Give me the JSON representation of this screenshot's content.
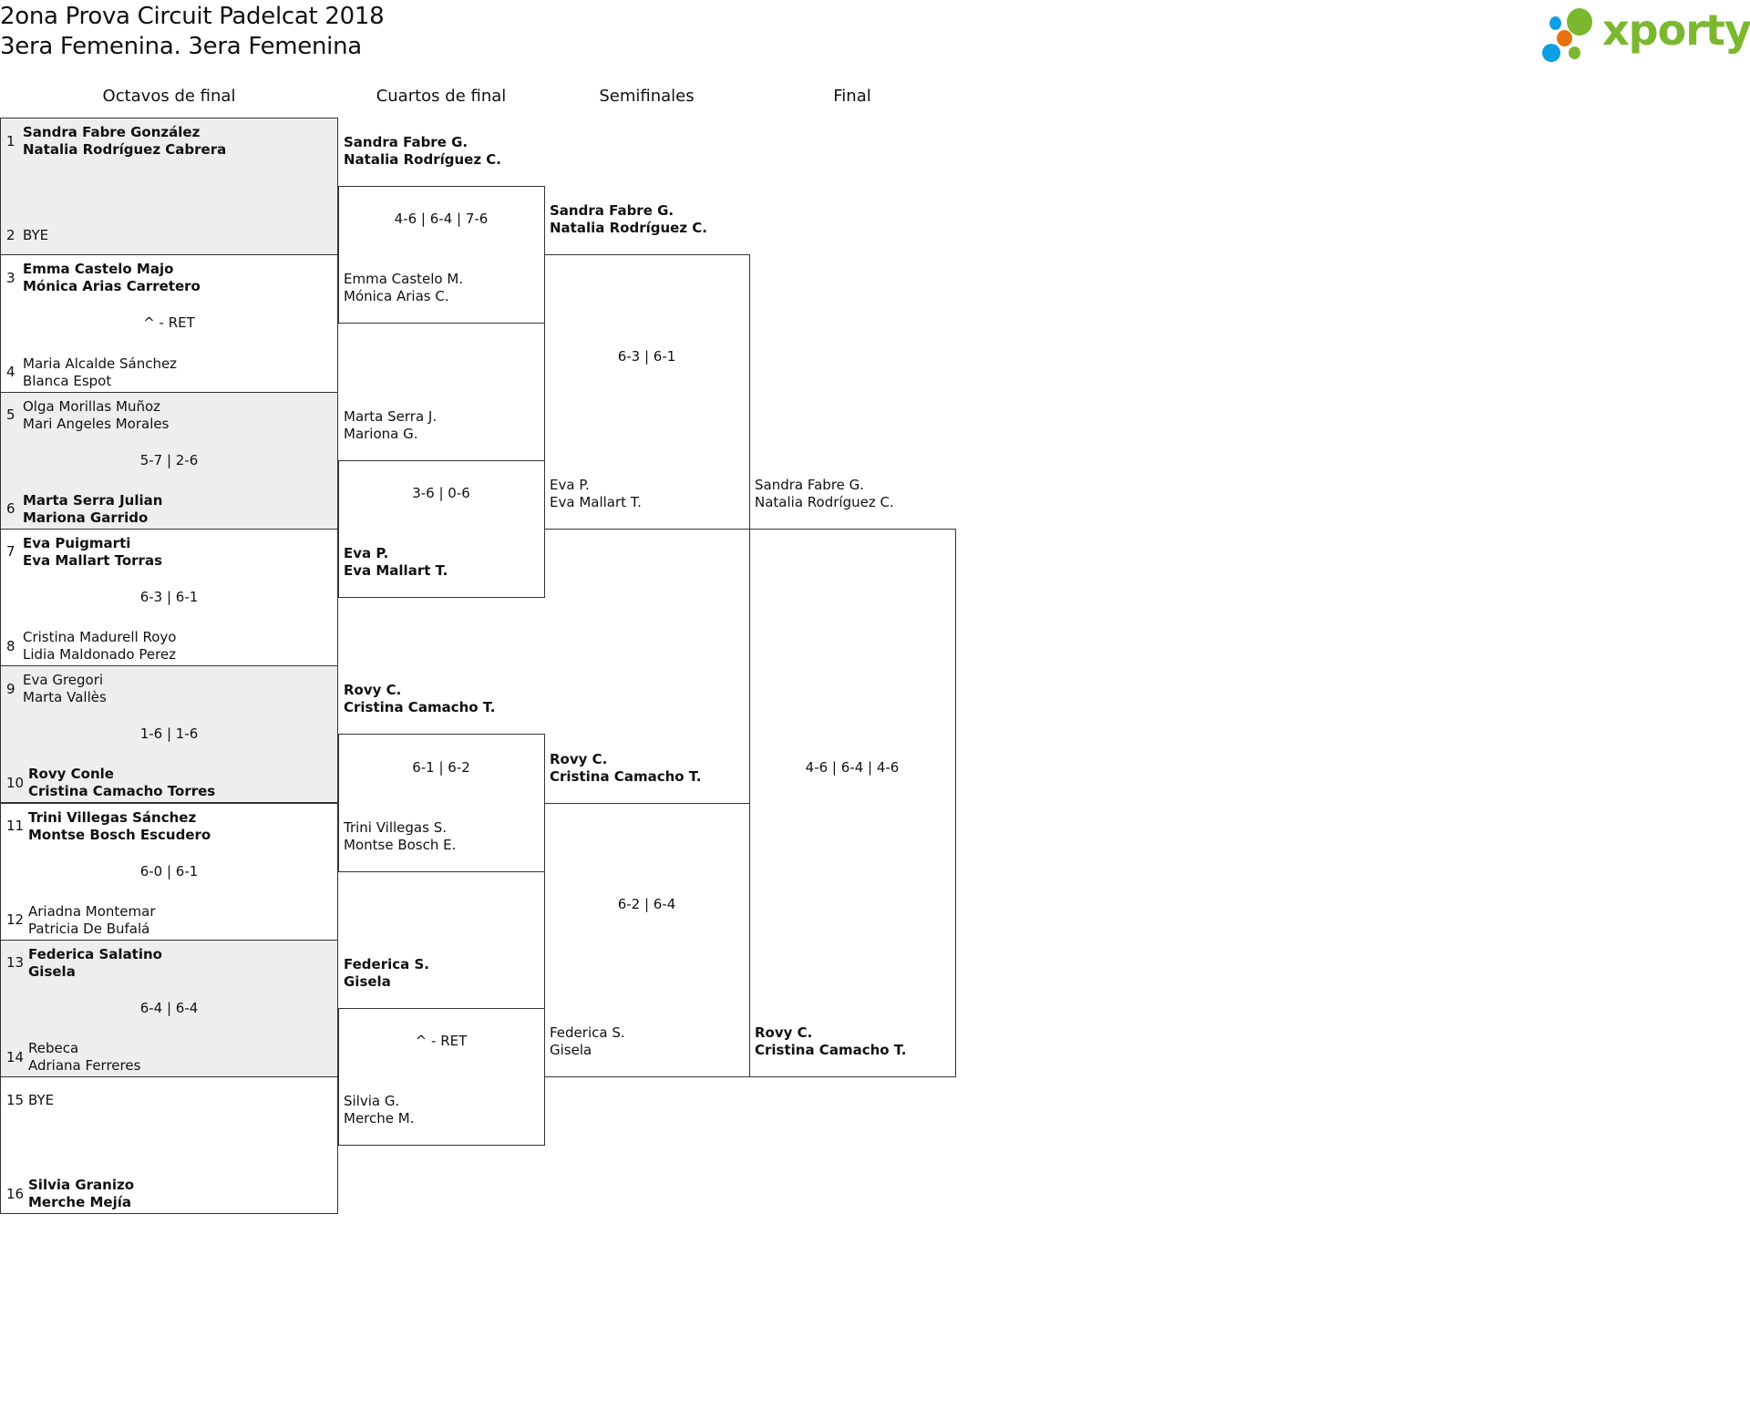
{
  "header": {
    "title": "2ona Prova Circuit Padelcat 2018",
    "subtitle": "3era Femenina. 3era Femenina",
    "logo_text": "xporty",
    "logo_colors": {
      "green": "#7cb82f",
      "blue": "#0e9ee3",
      "orange": "#e8710f"
    }
  },
  "rounds": [
    "Octavos de final",
    "Cuartos de final",
    "Semifinales",
    "Final"
  ],
  "round_of_16": [
    {
      "score": "",
      "teams": [
        {
          "seed": "1",
          "names": [
            "Sandra Fabre González",
            "Natalia Rodríguez Cabrera"
          ],
          "winner": true
        },
        {
          "seed": "2",
          "names": [
            "BYE"
          ],
          "winner": false
        }
      ]
    },
    {
      "score": "^ - RET",
      "teams": [
        {
          "seed": "3",
          "names": [
            "Emma Castelo Majo",
            "Mónica Arias Carretero"
          ],
          "winner": true
        },
        {
          "seed": "4",
          "names": [
            "Maria Alcalde Sánchez",
            "Blanca Espot"
          ],
          "winner": false
        }
      ]
    },
    {
      "score": "5-7 | 2-6",
      "teams": [
        {
          "seed": "5",
          "names": [
            "Olga Morillas Muñoz",
            "Mari Angeles Morales"
          ],
          "winner": false
        },
        {
          "seed": "6",
          "names": [
            "Marta Serra Julian",
            "Mariona Garrido"
          ],
          "winner": true
        }
      ]
    },
    {
      "score": "6-3 | 6-1",
      "teams": [
        {
          "seed": "7",
          "names": [
            "Eva Puigmarti",
            "Eva Mallart Torras"
          ],
          "winner": true
        },
        {
          "seed": "8",
          "names": [
            "Cristina Madurell Royo",
            "Lidia Maldonado Perez"
          ],
          "winner": false
        }
      ]
    },
    {
      "score": "1-6 | 1-6",
      "teams": [
        {
          "seed": "9",
          "names": [
            "Eva Gregori",
            "Marta Vallès"
          ],
          "winner": false
        },
        {
          "seed": "10",
          "names": [
            "Rovy Conle",
            "Cristina Camacho Torres"
          ],
          "winner": true
        }
      ]
    },
    {
      "score": "6-0 | 6-1",
      "teams": [
        {
          "seed": "11",
          "names": [
            "Trini Villegas Sánchez",
            "Montse Bosch Escudero"
          ],
          "winner": true
        },
        {
          "seed": "12",
          "names": [
            "Ariadna Montemar",
            "Patricia De Bufalá"
          ],
          "winner": false
        }
      ]
    },
    {
      "score": "6-4 | 6-4",
      "teams": [
        {
          "seed": "13",
          "names": [
            "Federica Salatino",
            "Gisela"
          ],
          "winner": true
        },
        {
          "seed": "14",
          "names": [
            "Rebeca",
            "Adriana Ferreres"
          ],
          "winner": false
        }
      ]
    },
    {
      "score": "",
      "teams": [
        {
          "seed": "15",
          "names": [
            "BYE"
          ],
          "winner": false
        },
        {
          "seed": "16",
          "names": [
            "Silvia Granizo",
            "Merche Mejía"
          ],
          "winner": true
        }
      ]
    }
  ],
  "quarterfinals": [
    {
      "score": "4-6 | 6-4 | 7-6",
      "teams": [
        {
          "names": [
            "Sandra Fabre G.",
            "Natalia Rodríguez C."
          ],
          "winner": true
        },
        {
          "names": [
            "Emma Castelo M.",
            "Mónica Arias C."
          ],
          "winner": false
        }
      ]
    },
    {
      "score": "3-6 | 0-6",
      "teams": [
        {
          "names": [
            "Marta Serra J.",
            "Mariona G."
          ],
          "winner": false
        },
        {
          "names": [
            "Eva P.",
            "Eva Mallart T."
          ],
          "winner": true
        }
      ]
    },
    {
      "score": "6-1 | 6-2",
      "teams": [
        {
          "names": [
            "Rovy C.",
            "Cristina Camacho T."
          ],
          "winner": true
        },
        {
          "names": [
            "Trini Villegas S.",
            "Montse Bosch E."
          ],
          "winner": false
        }
      ]
    },
    {
      "score": "^ - RET",
      "teams": [
        {
          "names": [
            "Federica S.",
            "Gisela"
          ],
          "winner": true
        },
        {
          "names": [
            "Silvia G.",
            "Merche M."
          ],
          "winner": false
        }
      ]
    }
  ],
  "semifinals": [
    {
      "score": "6-3 | 6-1",
      "teams": [
        {
          "names": [
            "Sandra Fabre G.",
            "Natalia Rodríguez C."
          ],
          "winner": true
        },
        {
          "names": [
            "Eva P.",
            "Eva Mallart T."
          ],
          "winner": false
        }
      ]
    },
    {
      "score": "6-2 | 6-4",
      "teams": [
        {
          "names": [
            "Rovy C.",
            "Cristina Camacho T."
          ],
          "winner": true
        },
        {
          "names": [
            "Federica S.",
            "Gisela"
          ],
          "winner": false
        }
      ]
    }
  ],
  "final": [
    {
      "score": "4-6 | 6-4 | 4-6",
      "teams": [
        {
          "names": [
            "Sandra Fabre G.",
            "Natalia Rodríguez C."
          ],
          "winner": false
        },
        {
          "names": [
            "Rovy C.",
            "Cristina Camacho T."
          ],
          "winner": true
        }
      ]
    }
  ]
}
